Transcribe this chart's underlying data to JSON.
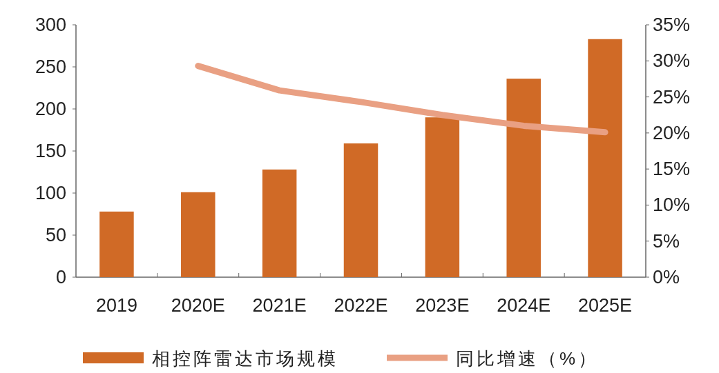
{
  "chart_data": {
    "type": "bar",
    "categories": [
      "2019",
      "2020E",
      "2021E",
      "2022E",
      "2023E",
      "2024E",
      "2025E"
    ],
    "series": [
      {
        "name": "相控阵雷达市场规模",
        "color": "#d06a26",
        "values": [
          78,
          101,
          128,
          159,
          190,
          236,
          283
        ]
      },
      {
        "name": "同比增速（%）",
        "type": "line",
        "axis": "y2",
        "color": "#e9a083",
        "values": [
          null,
          29.3,
          25.9,
          24.3,
          22.5,
          21.0,
          20.1
        ],
        "marker": "none"
      }
    ],
    "ylim": [
      0,
      300
    ],
    "yticks": [
      0,
      50,
      100,
      150,
      200,
      250,
      300
    ],
    "y2lim": [
      0,
      35
    ],
    "y2ticks": [
      {
        "value": 0,
        "label": "0%"
      },
      {
        "value": 5,
        "label": "5%"
      },
      {
        "value": 10,
        "label": "10%"
      },
      {
        "value": 15,
        "label": "15%"
      },
      {
        "value": 20,
        "label": "20%"
      },
      {
        "value": 25,
        "label": "25%"
      },
      {
        "value": 30,
        "label": "30%"
      },
      {
        "value": 35,
        "label": "35%"
      }
    ],
    "grid": false,
    "legend": "bottom"
  }
}
